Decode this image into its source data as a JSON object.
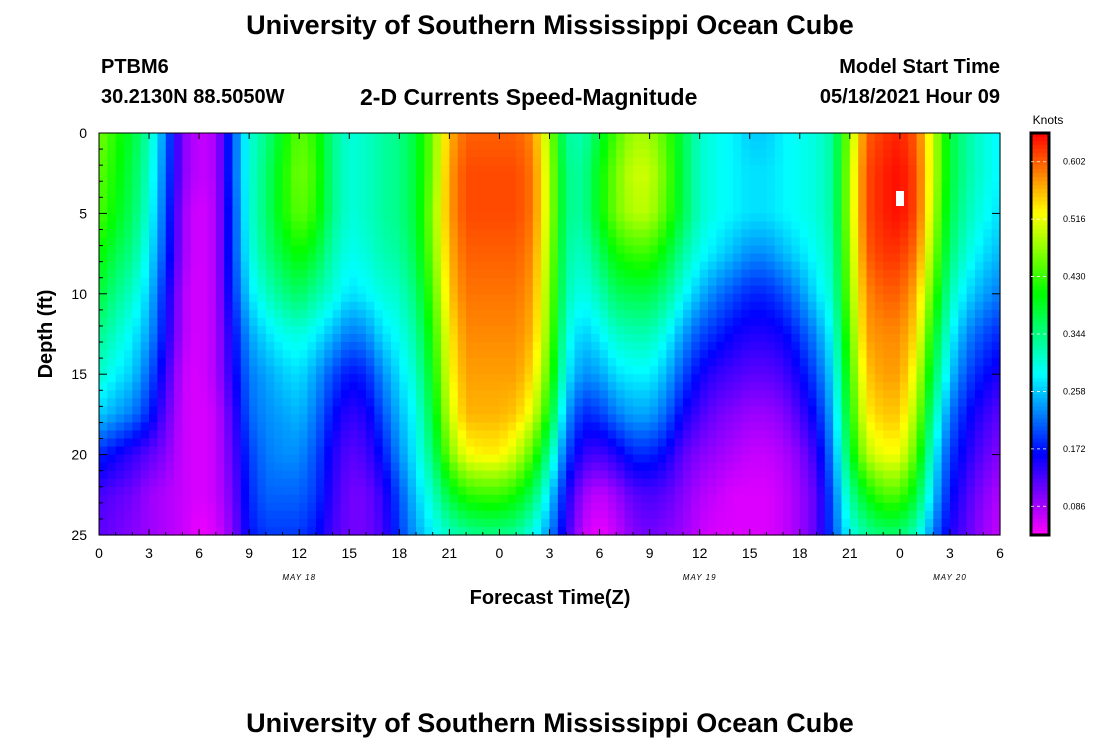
{
  "header": {
    "title": "University of Southern Mississippi Ocean Cube",
    "station_id": "PTBM6",
    "station_coords": "30.2130N  88.5050W",
    "chart_title": "2-D Currents Speed-Magnitude",
    "model_start_label": "Model Start Time",
    "model_start_time": "05/18/2021 Hour 09"
  },
  "footer": {
    "title": "University of Southern Mississippi Ocean Cube"
  },
  "chart_data": {
    "type": "heatmap",
    "title": "2-D Currents Speed-Magnitude",
    "xlabel": "Forecast Time(Z)",
    "ylabel": "Depth (ft)",
    "x_range_hours": [
      0,
      54
    ],
    "y_range_ft": [
      0,
      25
    ],
    "x_ticks": [
      {
        "h": 0,
        "label": "0"
      },
      {
        "h": 3,
        "label": "3"
      },
      {
        "h": 6,
        "label": "6"
      },
      {
        "h": 9,
        "label": "9"
      },
      {
        "h": 12,
        "label": "12"
      },
      {
        "h": 15,
        "label": "15"
      },
      {
        "h": 18,
        "label": "18"
      },
      {
        "h": 21,
        "label": "21"
      },
      {
        "h": 24,
        "label": "0"
      },
      {
        "h": 27,
        "label": "3"
      },
      {
        "h": 30,
        "label": "6"
      },
      {
        "h": 33,
        "label": "9"
      },
      {
        "h": 36,
        "label": "12"
      },
      {
        "h": 39,
        "label": "15"
      },
      {
        "h": 42,
        "label": "18"
      },
      {
        "h": 45,
        "label": "21"
      },
      {
        "h": 48,
        "label": "0"
      },
      {
        "h": 51,
        "label": "3"
      },
      {
        "h": 54,
        "label": "6"
      }
    ],
    "date_labels": [
      {
        "h": 12,
        "label": "MAY 18"
      },
      {
        "h": 36,
        "label": "MAY 19"
      },
      {
        "h": 51,
        "label": "MAY 20"
      }
    ],
    "y_ticks": [
      0,
      5,
      10,
      15,
      20,
      25
    ],
    "colorbar": {
      "label": "Knots",
      "range": [
        0.043,
        0.645
      ],
      "ticks": [
        0.602,
        0.516,
        0.43,
        0.344,
        0.258,
        0.172,
        0.086
      ],
      "tick_labels": [
        "0.602",
        "0.516",
        "0.430",
        "0.344",
        "0.258",
        "0.172",
        "0.086"
      ]
    },
    "speed_knots_grid": {
      "hours": [
        0,
        1,
        2,
        3,
        4,
        5,
        6,
        7,
        8,
        9,
        10,
        11,
        12,
        13,
        14,
        15,
        16,
        17,
        18,
        19,
        20,
        21,
        22,
        23,
        24,
        25,
        26,
        27,
        28,
        29,
        30,
        31,
        32,
        33,
        34,
        35,
        36,
        37,
        38,
        39,
        40,
        41,
        42,
        43,
        44,
        45,
        46,
        47,
        48,
        49,
        50,
        51,
        52,
        53,
        54
      ],
      "depths_ft": [
        0,
        2.5,
        5,
        7.5,
        10,
        12.5,
        15,
        17.5,
        20,
        22.5,
        25
      ],
      "rows": [
        [
          0.46,
          0.42,
          0.38,
          0.32,
          0.22,
          0.1,
          0.07,
          0.08,
          0.2,
          0.3,
          0.34,
          0.4,
          0.45,
          0.42,
          0.34,
          0.3,
          0.31,
          0.33,
          0.34,
          0.38,
          0.46,
          0.56,
          0.6,
          0.6,
          0.6,
          0.6,
          0.58,
          0.48,
          0.33,
          0.32,
          0.38,
          0.44,
          0.48,
          0.48,
          0.44,
          0.37,
          0.31,
          0.29,
          0.28,
          0.26,
          0.26,
          0.28,
          0.29,
          0.3,
          0.33,
          0.48,
          0.6,
          0.62,
          0.63,
          0.6,
          0.5,
          0.38,
          0.33,
          0.3,
          0.28
        ],
        [
          0.45,
          0.41,
          0.37,
          0.31,
          0.21,
          0.1,
          0.07,
          0.08,
          0.2,
          0.3,
          0.35,
          0.41,
          0.46,
          0.43,
          0.34,
          0.3,
          0.31,
          0.33,
          0.34,
          0.38,
          0.46,
          0.57,
          0.61,
          0.61,
          0.61,
          0.61,
          0.59,
          0.49,
          0.34,
          0.33,
          0.4,
          0.46,
          0.5,
          0.5,
          0.45,
          0.37,
          0.31,
          0.29,
          0.28,
          0.27,
          0.27,
          0.28,
          0.29,
          0.3,
          0.33,
          0.49,
          0.61,
          0.63,
          0.64,
          0.61,
          0.5,
          0.38,
          0.33,
          0.3,
          0.28
        ],
        [
          0.44,
          0.4,
          0.36,
          0.3,
          0.2,
          0.09,
          0.06,
          0.08,
          0.19,
          0.3,
          0.35,
          0.41,
          0.45,
          0.42,
          0.34,
          0.3,
          0.31,
          0.33,
          0.34,
          0.38,
          0.47,
          0.57,
          0.61,
          0.61,
          0.61,
          0.61,
          0.59,
          0.49,
          0.34,
          0.33,
          0.4,
          0.46,
          0.49,
          0.49,
          0.44,
          0.37,
          0.31,
          0.29,
          0.28,
          0.27,
          0.27,
          0.28,
          0.29,
          0.3,
          0.33,
          0.49,
          0.61,
          0.63,
          0.64,
          0.61,
          0.49,
          0.37,
          0.32,
          0.29,
          0.27
        ],
        [
          0.41,
          0.37,
          0.34,
          0.28,
          0.19,
          0.09,
          0.06,
          0.08,
          0.19,
          0.29,
          0.34,
          0.38,
          0.41,
          0.38,
          0.32,
          0.29,
          0.3,
          0.32,
          0.33,
          0.37,
          0.46,
          0.56,
          0.6,
          0.6,
          0.6,
          0.6,
          0.58,
          0.48,
          0.33,
          0.31,
          0.36,
          0.41,
          0.43,
          0.43,
          0.39,
          0.33,
          0.29,
          0.27,
          0.25,
          0.23,
          0.23,
          0.25,
          0.27,
          0.29,
          0.32,
          0.48,
          0.6,
          0.62,
          0.62,
          0.59,
          0.47,
          0.35,
          0.3,
          0.27,
          0.25
        ],
        [
          0.38,
          0.34,
          0.31,
          0.26,
          0.17,
          0.08,
          0.06,
          0.08,
          0.18,
          0.27,
          0.31,
          0.34,
          0.36,
          0.33,
          0.3,
          0.27,
          0.28,
          0.3,
          0.31,
          0.35,
          0.44,
          0.55,
          0.59,
          0.59,
          0.59,
          0.59,
          0.57,
          0.47,
          0.32,
          0.29,
          0.32,
          0.36,
          0.37,
          0.37,
          0.34,
          0.29,
          0.25,
          0.22,
          0.2,
          0.18,
          0.18,
          0.2,
          0.23,
          0.27,
          0.31,
          0.47,
          0.58,
          0.6,
          0.6,
          0.56,
          0.44,
          0.32,
          0.27,
          0.24,
          0.22
        ],
        [
          0.34,
          0.31,
          0.28,
          0.24,
          0.16,
          0.08,
          0.06,
          0.08,
          0.16,
          0.24,
          0.27,
          0.29,
          0.3,
          0.28,
          0.25,
          0.22,
          0.23,
          0.27,
          0.29,
          0.33,
          0.42,
          0.53,
          0.58,
          0.58,
          0.58,
          0.58,
          0.56,
          0.46,
          0.3,
          0.26,
          0.28,
          0.31,
          0.32,
          0.32,
          0.29,
          0.24,
          0.2,
          0.18,
          0.16,
          0.15,
          0.15,
          0.16,
          0.19,
          0.23,
          0.29,
          0.45,
          0.57,
          0.58,
          0.58,
          0.54,
          0.4,
          0.29,
          0.23,
          0.2,
          0.18
        ],
        [
          0.31,
          0.28,
          0.26,
          0.21,
          0.14,
          0.07,
          0.06,
          0.08,
          0.15,
          0.22,
          0.24,
          0.26,
          0.27,
          0.24,
          0.2,
          0.17,
          0.18,
          0.23,
          0.27,
          0.31,
          0.4,
          0.52,
          0.57,
          0.57,
          0.57,
          0.57,
          0.54,
          0.44,
          0.28,
          0.23,
          0.24,
          0.27,
          0.28,
          0.28,
          0.25,
          0.2,
          0.16,
          0.14,
          0.13,
          0.12,
          0.12,
          0.13,
          0.16,
          0.2,
          0.27,
          0.43,
          0.55,
          0.57,
          0.57,
          0.51,
          0.37,
          0.26,
          0.2,
          0.17,
          0.15
        ],
        [
          0.26,
          0.24,
          0.22,
          0.18,
          0.12,
          0.07,
          0.06,
          0.07,
          0.13,
          0.21,
          0.23,
          0.24,
          0.25,
          0.22,
          0.17,
          0.14,
          0.15,
          0.2,
          0.25,
          0.29,
          0.38,
          0.5,
          0.56,
          0.56,
          0.56,
          0.55,
          0.51,
          0.4,
          0.24,
          0.18,
          0.19,
          0.22,
          0.24,
          0.24,
          0.21,
          0.16,
          0.13,
          0.11,
          0.1,
          0.09,
          0.09,
          0.1,
          0.13,
          0.17,
          0.25,
          0.41,
          0.53,
          0.55,
          0.55,
          0.48,
          0.33,
          0.22,
          0.17,
          0.14,
          0.12
        ],
        [
          0.18,
          0.16,
          0.14,
          0.12,
          0.1,
          0.07,
          0.06,
          0.07,
          0.12,
          0.19,
          0.22,
          0.23,
          0.23,
          0.2,
          0.15,
          0.12,
          0.13,
          0.17,
          0.23,
          0.28,
          0.35,
          0.46,
          0.52,
          0.53,
          0.53,
          0.5,
          0.44,
          0.33,
          0.2,
          0.14,
          0.13,
          0.15,
          0.18,
          0.18,
          0.16,
          0.12,
          0.1,
          0.09,
          0.08,
          0.07,
          0.07,
          0.08,
          0.1,
          0.14,
          0.23,
          0.38,
          0.49,
          0.52,
          0.52,
          0.44,
          0.29,
          0.19,
          0.15,
          0.12,
          0.1
        ],
        [
          0.13,
          0.12,
          0.11,
          0.09,
          0.08,
          0.07,
          0.06,
          0.07,
          0.11,
          0.18,
          0.21,
          0.21,
          0.21,
          0.19,
          0.14,
          0.11,
          0.11,
          0.14,
          0.2,
          0.26,
          0.31,
          0.38,
          0.42,
          0.43,
          0.43,
          0.41,
          0.36,
          0.27,
          0.16,
          0.09,
          0.07,
          0.09,
          0.12,
          0.13,
          0.12,
          0.1,
          0.08,
          0.07,
          0.06,
          0.06,
          0.06,
          0.07,
          0.09,
          0.12,
          0.21,
          0.33,
          0.4,
          0.44,
          0.44,
          0.38,
          0.26,
          0.17,
          0.13,
          0.1,
          0.08
        ],
        [
          0.12,
          0.11,
          0.1,
          0.09,
          0.08,
          0.07,
          0.05,
          0.06,
          0.1,
          0.17,
          0.19,
          0.19,
          0.19,
          0.17,
          0.13,
          0.11,
          0.11,
          0.13,
          0.19,
          0.24,
          0.28,
          0.31,
          0.33,
          0.34,
          0.34,
          0.33,
          0.29,
          0.23,
          0.14,
          0.07,
          0.05,
          0.07,
          0.1,
          0.11,
          0.1,
          0.09,
          0.07,
          0.06,
          0.06,
          0.06,
          0.06,
          0.07,
          0.09,
          0.12,
          0.2,
          0.29,
          0.33,
          0.35,
          0.35,
          0.31,
          0.22,
          0.15,
          0.12,
          0.09,
          0.07
        ]
      ]
    }
  }
}
